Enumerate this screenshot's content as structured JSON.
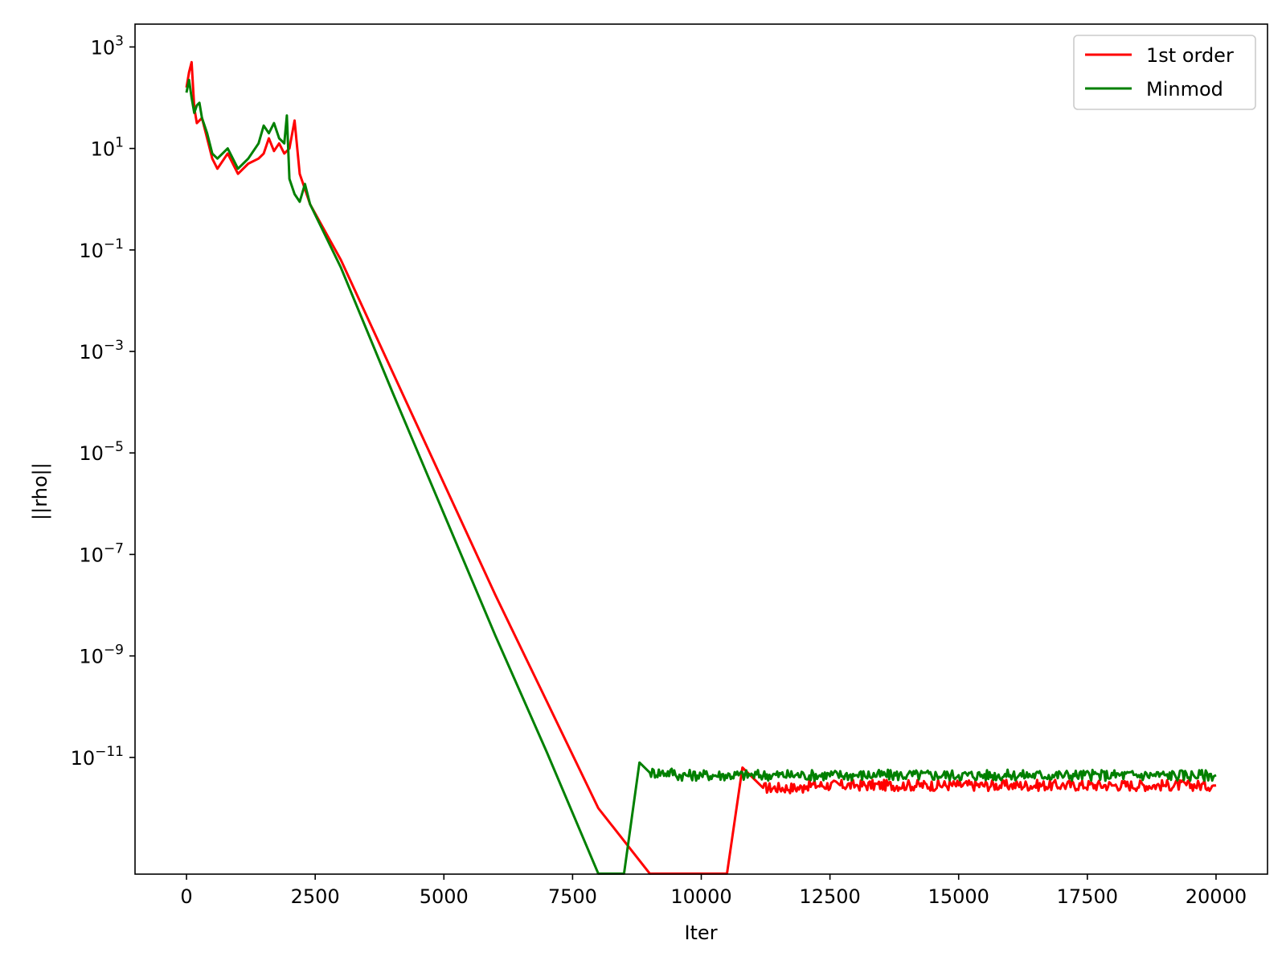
{
  "chart_data": {
    "type": "line",
    "xlabel": "Iter",
    "ylabel": "||rho||",
    "xlim": [
      -1000,
      21000
    ],
    "ylim_exponent": [
      -13.3,
      3.45
    ],
    "y_scale": "log",
    "grid": false,
    "legend_position": "upper right",
    "x_ticks": [
      0,
      2500,
      5000,
      7500,
      10000,
      12500,
      15000,
      17500,
      20000
    ],
    "x_tick_labels": [
      "0",
      "2500",
      "5000",
      "7500",
      "10000",
      "12500",
      "15000",
      "17500",
      "20000"
    ],
    "y_tick_exponents": [
      3,
      1,
      -1,
      -3,
      -5,
      -7,
      -9,
      -11
    ],
    "y_tick_bases": [
      "10",
      "10",
      "10",
      "10",
      "10",
      "10",
      "10",
      "10"
    ],
    "y_tick_powers": [
      "3",
      "1",
      "−1",
      "−3",
      "−5",
      "−7",
      "−9",
      "−11"
    ],
    "series": [
      {
        "name": "1st order",
        "color": "#ff0000",
        "x": [
          0,
          50,
          100,
          150,
          200,
          300,
          400,
          500,
          600,
          800,
          1000,
          1200,
          1400,
          1500,
          1600,
          1700,
          1800,
          1900,
          2000,
          2100,
          2200,
          2300,
          2400,
          3000,
          4000,
          5000,
          6000,
          7000,
          8000,
          9000,
          10000,
          10500,
          10800,
          11200,
          12000,
          13000,
          14000,
          15000,
          16000,
          17000,
          18000,
          19000,
          20000
        ],
        "log10_y": [
          2.2,
          2.5,
          2.7,
          1.8,
          1.5,
          1.6,
          1.2,
          0.8,
          0.6,
          0.9,
          0.5,
          0.7,
          0.8,
          0.9,
          1.2,
          0.95,
          1.1,
          0.9,
          1.0,
          1.55,
          0.5,
          0.2,
          -0.1,
          -1.2,
          -3.4,
          -5.6,
          -7.8,
          -9.9,
          -12.0,
          -14.2,
          -16.3,
          -17.5,
          -11.2,
          -11.6,
          -11.55,
          -11.55,
          -11.55,
          -11.55,
          -11.55,
          -11.55,
          -11.55,
          -11.55,
          -11.55
        ]
      },
      {
        "name": "Minmod",
        "color": "#008000",
        "x": [
          0,
          50,
          100,
          150,
          200,
          250,
          300,
          400,
          500,
          600,
          800,
          1000,
          1200,
          1400,
          1500,
          1600,
          1700,
          1800,
          1900,
          1950,
          2000,
          2100,
          2200,
          2300,
          2400,
          3000,
          4000,
          5000,
          6000,
          7000,
          8000,
          8500,
          8800,
          9000,
          9500,
          10000,
          11000,
          12000,
          13000,
          14000,
          15000,
          16000,
          17000,
          18000,
          19000,
          20000
        ],
        "log10_y": [
          2.1,
          2.35,
          2.0,
          1.7,
          1.85,
          1.9,
          1.6,
          1.3,
          0.9,
          0.8,
          1.0,
          0.6,
          0.8,
          1.1,
          1.45,
          1.3,
          1.5,
          1.2,
          1.1,
          1.65,
          0.4,
          0.1,
          -0.05,
          0.3,
          -0.1,
          -1.35,
          -3.8,
          -6.2,
          -8.6,
          -10.9,
          -13.3,
          -14.5,
          -11.1,
          -11.3,
          -11.35,
          -11.35,
          -11.35,
          -11.35,
          -11.35,
          -11.35,
          -11.35,
          -11.35,
          -11.35,
          -11.35,
          -11.35,
          -11.35
        ]
      }
    ]
  }
}
